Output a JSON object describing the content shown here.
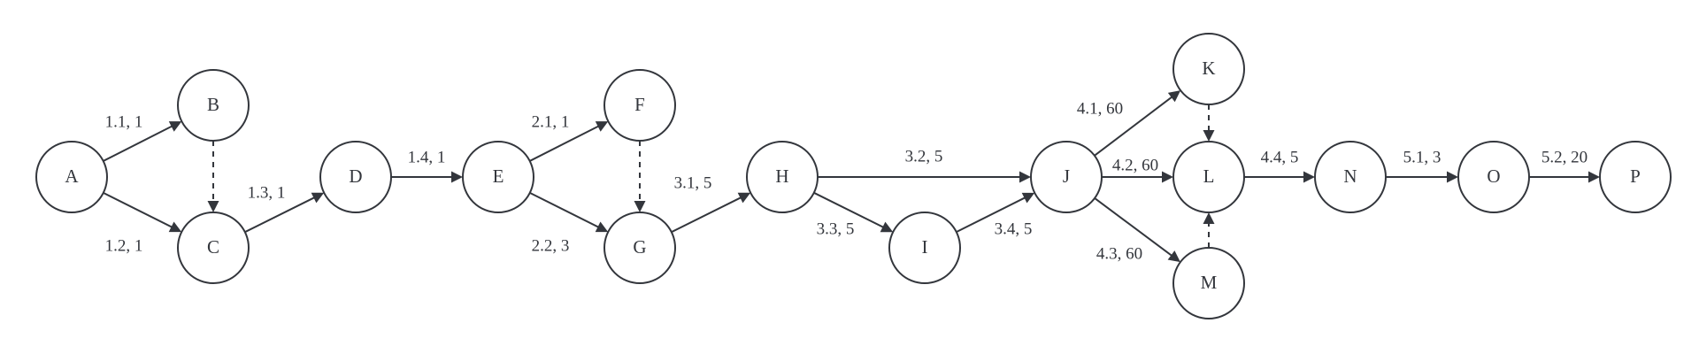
{
  "nodes": [
    {
      "id": "A",
      "label": "A"
    },
    {
      "id": "B",
      "label": "B"
    },
    {
      "id": "C",
      "label": "C"
    },
    {
      "id": "D",
      "label": "D"
    },
    {
      "id": "E",
      "label": "E"
    },
    {
      "id": "F",
      "label": "F"
    },
    {
      "id": "G",
      "label": "G"
    },
    {
      "id": "H",
      "label": "H"
    },
    {
      "id": "I",
      "label": "I"
    },
    {
      "id": "J",
      "label": "J"
    },
    {
      "id": "K",
      "label": "K"
    },
    {
      "id": "L",
      "label": "L"
    },
    {
      "id": "M",
      "label": "M"
    },
    {
      "id": "N",
      "label": "N"
    },
    {
      "id": "O",
      "label": "O"
    },
    {
      "id": "P",
      "label": "P"
    }
  ],
  "edges": [
    {
      "from": "A",
      "to": "B",
      "label": "1.1, 1",
      "dashed": false
    },
    {
      "from": "A",
      "to": "C",
      "label": "1.2, 1",
      "dashed": false
    },
    {
      "from": "B",
      "to": "C",
      "label": "",
      "dashed": true
    },
    {
      "from": "C",
      "to": "D",
      "label": "1.3, 1",
      "dashed": false
    },
    {
      "from": "D",
      "to": "E",
      "label": "1.4, 1",
      "dashed": false
    },
    {
      "from": "E",
      "to": "F",
      "label": "2.1, 1",
      "dashed": false
    },
    {
      "from": "E",
      "to": "G",
      "label": "2.2, 3",
      "dashed": false
    },
    {
      "from": "F",
      "to": "G",
      "label": "",
      "dashed": true
    },
    {
      "from": "G",
      "to": "H",
      "label": "3.1, 5",
      "dashed": false
    },
    {
      "from": "H",
      "to": "J",
      "label": "3.2, 5",
      "dashed": false
    },
    {
      "from": "H",
      "to": "I",
      "label": "3.3, 5",
      "dashed": false
    },
    {
      "from": "I",
      "to": "J",
      "label": "3.4, 5",
      "dashed": false
    },
    {
      "from": "J",
      "to": "K",
      "label": "4.1, 60",
      "dashed": false
    },
    {
      "from": "J",
      "to": "L",
      "label": "4.2, 60",
      "dashed": false
    },
    {
      "from": "J",
      "to": "M",
      "label": "4.3, 60",
      "dashed": false
    },
    {
      "from": "K",
      "to": "L",
      "label": "",
      "dashed": true
    },
    {
      "from": "M",
      "to": "L",
      "label": "",
      "dashed": true
    },
    {
      "from": "L",
      "to": "N",
      "label": "4.4, 5",
      "dashed": false
    },
    {
      "from": "N",
      "to": "O",
      "label": "5.1, 3",
      "dashed": false
    },
    {
      "from": "O",
      "to": "P",
      "label": "5.2, 20",
      "dashed": false
    }
  ]
}
